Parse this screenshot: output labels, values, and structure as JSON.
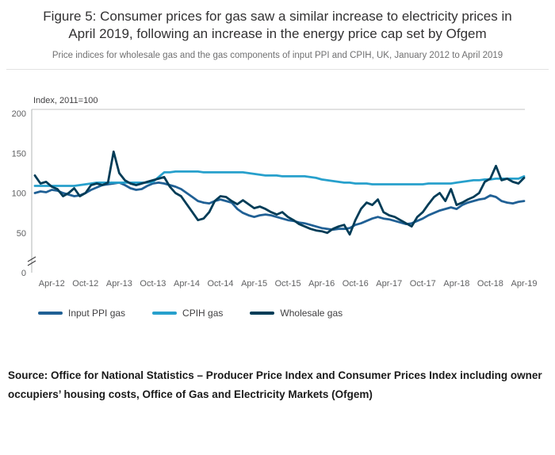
{
  "chart_data": {
    "type": "line",
    "title": "Figure 5: Consumer prices for gas saw a similar increase to electricity prices in April 2019, following an increase in the energy price cap set by Ofgem",
    "subtitle": "Price indices for wholesale gas and the gas components of input PPI and CPIH, UK, January 2012 to April 2019",
    "unit_label": "Index, 2011=100",
    "x_range": "January 2012 to April 2019",
    "x_months": 88,
    "x_tick_labels": [
      "Apr-12",
      "Oct-12",
      "Apr-13",
      "Oct-13",
      "Apr-14",
      "Oct-14",
      "Apr-15",
      "Oct-15",
      "Apr-16",
      "Oct-16",
      "Apr-17",
      "Oct-17",
      "Apr-18",
      "Oct-18",
      "Apr-19"
    ],
    "x_tick_indices": [
      3,
      9,
      15,
      21,
      27,
      33,
      39,
      45,
      51,
      57,
      63,
      69,
      75,
      81,
      87
    ],
    "yticks": [
      0,
      50,
      100,
      150,
      200
    ],
    "ylim": [
      0,
      205
    ],
    "axis_break": true,
    "grid": "top-border-only",
    "legend_position": "bottom",
    "series": [
      {
        "name": "Input PPI gas",
        "color": "#206095",
        "values": [
          100,
          102,
          101,
          104,
          103,
          100,
          98,
          96,
          97,
          100,
          104,
          107,
          110,
          111,
          112,
          113,
          110,
          106,
          104,
          105,
          109,
          112,
          113,
          112,
          110,
          108,
          105,
          100,
          95,
          90,
          88,
          87,
          90,
          92,
          90,
          88,
          80,
          75,
          72,
          70,
          72,
          73,
          72,
          70,
          68,
          66,
          65,
          63,
          62,
          60,
          58,
          56,
          55,
          54,
          55,
          55,
          56,
          60,
          62,
          65,
          68,
          70,
          68,
          67,
          65,
          63,
          61,
          62,
          65,
          68,
          72,
          75,
          78,
          80,
          82,
          80,
          85,
          88,
          90,
          92,
          93,
          97,
          95,
          90,
          88,
          87,
          89,
          90
        ]
      },
      {
        "name": "CPIH gas",
        "color": "#27a0cc",
        "values": [
          109,
          109,
          109,
          109,
          109,
          109,
          109,
          109,
          110,
          111,
          112,
          113,
          113,
          113,
          113,
          113,
          113,
          113,
          113,
          113,
          113,
          114,
          120,
          126,
          126,
          127,
          127,
          127,
          127,
          127,
          126,
          126,
          126,
          126,
          126,
          126,
          126,
          126,
          125,
          124,
          123,
          122,
          122,
          122,
          121,
          121,
          121,
          121,
          121,
          120,
          119,
          117,
          116,
          115,
          114,
          113,
          113,
          112,
          112,
          112,
          111,
          111,
          111,
          111,
          111,
          111,
          111,
          111,
          111,
          111,
          112,
          112,
          112,
          112,
          112,
          113,
          114,
          115,
          116,
          116,
          117,
          117,
          118,
          118,
          118,
          118,
          118,
          121
        ]
      },
      {
        "name": "Wholesale gas",
        "color": "#003c57",
        "values": [
          122,
          112,
          114,
          108,
          105,
          96,
          100,
          106,
          96,
          100,
          110,
          112,
          110,
          113,
          152,
          125,
          116,
          112,
          110,
          112,
          114,
          116,
          118,
          120,
          108,
          100,
          96,
          86,
          76,
          66,
          68,
          76,
          90,
          96,
          95,
          90,
          86,
          91,
          86,
          81,
          83,
          80,
          76,
          73,
          76,
          70,
          66,
          61,
          58,
          55,
          53,
          52,
          50,
          55,
          58,
          60,
          48,
          66,
          80,
          88,
          85,
          92,
          76,
          72,
          70,
          66,
          62,
          58,
          70,
          76,
          86,
          95,
          100,
          90,
          105,
          85,
          88,
          92,
          95,
          100,
          114,
          118,
          134,
          116,
          118,
          114,
          112,
          119
        ]
      }
    ]
  },
  "source": "Source: Office for National Statistics – Producer Price Index and Consumer Prices Index including owner occupiers’ housing costs, Office of Gas and Electricity Markets (Ofgem)"
}
